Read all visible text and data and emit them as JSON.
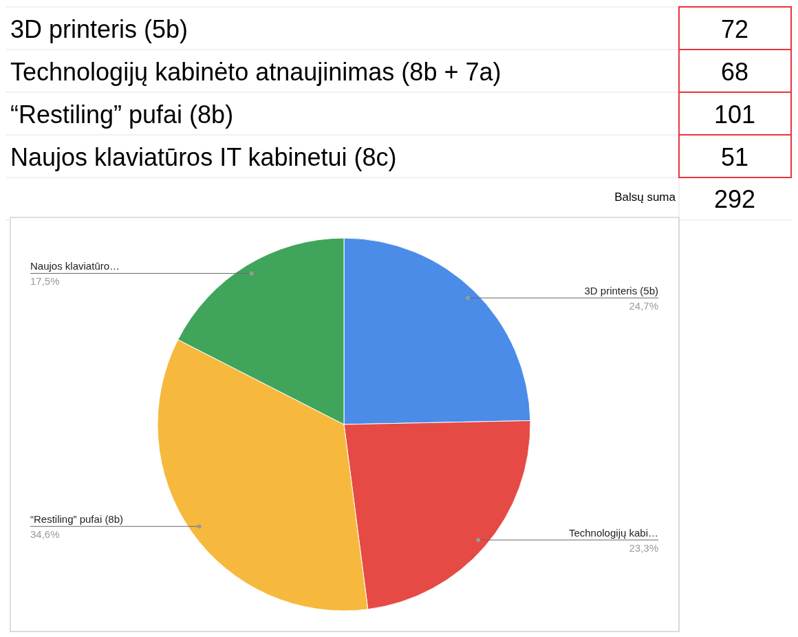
{
  "chart_data": [
    {
      "type": "other",
      "categories": [
        "3D printeris (5b)",
        "Technologijų kabinėto atnaujinimas (8b + 7a)",
        "“Restiling” pufai (8b)",
        "Naujos klaviatūros IT kabinetui (8c)"
      ],
      "values": [
        72,
        68,
        101,
        51
      ],
      "data_labels": true,
      "annotations": [
        "Balsų suma",
        "292"
      ]
    },
    {
      "type": "pie",
      "categories": [
        "3D printeris (5b)",
        "Technologijų kabi…",
        "“Restiling” pufai (8b)",
        "Naujos klaviatūro…"
      ],
      "values": [
        24.7,
        23.3,
        34.6,
        17.5
      ],
      "colors": [
        "#4a8ce8",
        "#e64a45",
        "#f6b93e",
        "#40a55b"
      ],
      "value_labels": [
        "24,7%",
        "23,3%",
        "34,6%",
        "17,5%"
      ]
    }
  ]
}
